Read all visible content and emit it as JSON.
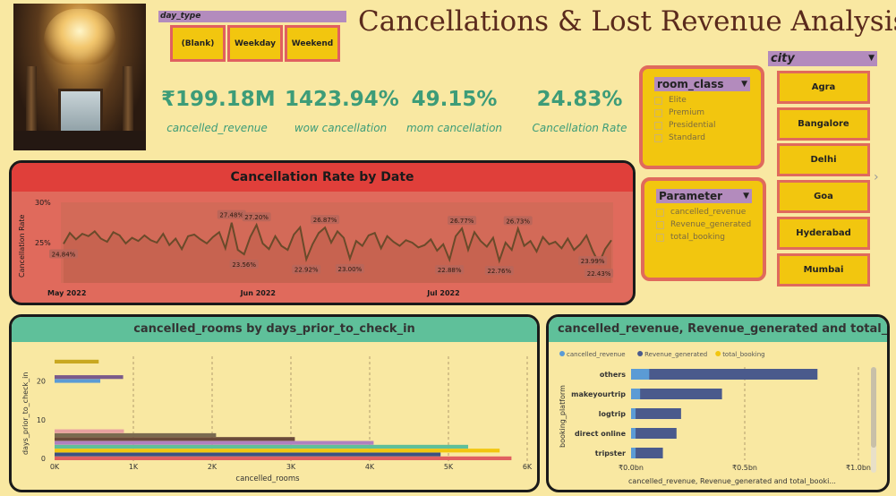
{
  "title": "Cancellations & Lost Revenue Analysis",
  "day_type": {
    "header": "day_type",
    "options": [
      "(Blank)",
      "Weekday",
      "Weekend"
    ]
  },
  "kpis": [
    {
      "value": "₹199.18M",
      "label": "cancelled_revenue"
    },
    {
      "value": "1423.94%",
      "label": "wow cancellation"
    },
    {
      "value": "49.15%",
      "label": "mom cancellation"
    },
    {
      "value": "24.83%",
      "label": "Cancellation Rate"
    }
  ],
  "room_class": {
    "header": "room_class",
    "options": [
      "Elite",
      "Premium",
      "Presidential",
      "Standard"
    ]
  },
  "parameter": {
    "header": "Parameter",
    "options": [
      "cancelled_revenue",
      "Revenue_generated",
      "total_booking"
    ]
  },
  "city": {
    "header": "city",
    "options": [
      "Agra",
      "Bangalore",
      "Delhi",
      "Goa",
      "Hyderabad",
      "Mumbai"
    ],
    "next_icon": "chevron-right-icon"
  },
  "colors": {
    "background": "#f9e8a2",
    "accent_green": "#3d9c78",
    "slicer_yellow": "#f2c60f",
    "slicer_border": "#e06a5c",
    "slicer_header": "#b38bbd",
    "rate_card": "#e06a5c",
    "rate_title": "#e03f3a",
    "bar_header": "#5fc09a"
  },
  "chart_data": [
    {
      "type": "line",
      "title": "Cancellation Rate by Date",
      "xlabel": "",
      "ylabel": "Cancellation Rate",
      "y_ticks": [
        "30%",
        "25%"
      ],
      "x_ticks": [
        "May 2022",
        "Jun 2022",
        "Jul 2022"
      ],
      "ylim": [
        20,
        30
      ],
      "annotations": [
        "24.84%",
        "27.48%",
        "23.56%",
        "27.20%",
        "22.92%",
        "26.87%",
        "23.00%",
        "22.88%",
        "26.77%",
        "22.76%",
        "26.73%",
        "23.99%",
        "22.43%"
      ],
      "series": [
        {
          "values": [
            24.84,
            26.2,
            25.4,
            26.1,
            25.8,
            26.4,
            25.5,
            25.1,
            26.3,
            25.9,
            24.9,
            25.6,
            25.2,
            25.9,
            25.3,
            25.0,
            26.1,
            24.7,
            25.5,
            24.2,
            25.8,
            26.0,
            25.4,
            24.9,
            25.7,
            26.3,
            24.3,
            27.48,
            24.1,
            23.56,
            25.7,
            27.2,
            24.9,
            24.2,
            25.8,
            24.6,
            24.1,
            26.0,
            26.9,
            22.92,
            24.8,
            26.2,
            26.87,
            25.0,
            26.4,
            25.6,
            23.0,
            25.2,
            24.6,
            25.9,
            26.2,
            24.3,
            25.8,
            25.1,
            24.6,
            25.3,
            25.0,
            24.4,
            24.7,
            25.4,
            24.0,
            24.8,
            22.88,
            25.8,
            26.77,
            24.1,
            26.3,
            25.2,
            24.5,
            25.6,
            22.76,
            25.0,
            24.1,
            26.73,
            24.6,
            25.2,
            23.9,
            25.7,
            24.8,
            25.1,
            24.3,
            25.5,
            24.1,
            24.8,
            25.9,
            23.99,
            22.43,
            24.2,
            25.3
          ]
        }
      ]
    },
    {
      "type": "bar",
      "title": "cancelled_rooms by days_prior_to_check_in",
      "xlabel": "cancelled_rooms",
      "ylabel": "days_prior_to_check_in",
      "x_ticks": [
        "0K",
        "1K",
        "2K",
        "3K",
        "4K",
        "5K",
        "6K"
      ],
      "y_ticks": [
        "0",
        "10",
        "20"
      ],
      "xlim": [
        0,
        6000
      ],
      "ylim": [
        0,
        25
      ],
      "bars": [
        {
          "days_prior": 0,
          "cancelled_rooms": 5800,
          "color": "#e06060"
        },
        {
          "days_prior": 1,
          "cancelled_rooms": 4900,
          "color": "#3c5080"
        },
        {
          "days_prior": 2,
          "cancelled_rooms": 5650,
          "color": "#f2c60f"
        },
        {
          "days_prior": 3,
          "cancelled_rooms": 5250,
          "color": "#5fc09a"
        },
        {
          "days_prior": 4,
          "cancelled_rooms": 4050,
          "color": "#b080c0"
        },
        {
          "days_prior": 5,
          "cancelled_rooms": 3050,
          "color": "#6a4a3a"
        },
        {
          "days_prior": 6,
          "cancelled_rooms": 2050,
          "color": "#7a6a50"
        },
        {
          "days_prior": 7,
          "cancelled_rooms": 880,
          "color": "#e8a0a0"
        },
        {
          "days_prior": 20,
          "cancelled_rooms": 580,
          "color": "#5b9bd5"
        },
        {
          "days_prior": 21,
          "cancelled_rooms": 870,
          "color": "#7a5a8a"
        },
        {
          "days_prior": 25,
          "cancelled_rooms": 560,
          "color": "#c9a820"
        }
      ]
    },
    {
      "type": "bar",
      "title": "cancelled_revenue, Revenue_generated and total_bo...",
      "xlabel": "cancelled_revenue, Revenue_generated and total_booki...",
      "ylabel": "booking_platform",
      "x_ticks": [
        "₹0.0bn",
        "₹0.5bn",
        "₹1.0bn"
      ],
      "xlim": [
        0,
        1.0
      ],
      "legend_position": "top-left",
      "categories": [
        "others",
        "makeyourtrip",
        "logtrip",
        "direct online",
        "tripster"
      ],
      "series": [
        {
          "name": "cancelled_revenue",
          "values": [
            0.08,
            0.04,
            0.02,
            0.02,
            0.02
          ],
          "color": "#5b9bd5"
        },
        {
          "name": "Revenue_generated",
          "values": [
            0.82,
            0.4,
            0.22,
            0.2,
            0.14
          ],
          "color": "#4a5a8c"
        },
        {
          "name": "total_booking",
          "values": [
            0.0,
            0.0,
            0.0,
            0.0,
            0.0
          ],
          "color": "#f2c60f"
        }
      ]
    }
  ]
}
